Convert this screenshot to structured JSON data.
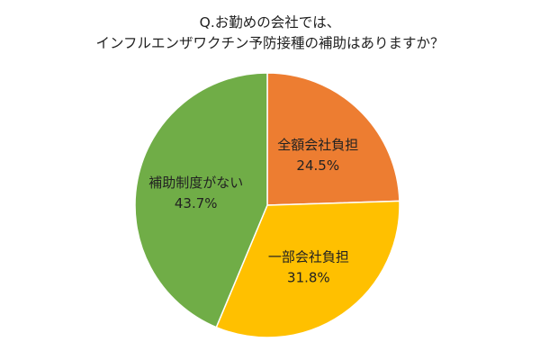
{
  "chart_data": {
    "type": "pie",
    "title_lines": [
      "Q.お勤めの会社では、",
      "インフルエンザワクチン予防接種の補助はありますか？"
    ],
    "slices": [
      {
        "label": "全額会社負担",
        "value": 24.5,
        "value_label": "24.5%",
        "color": "#ED7D31"
      },
      {
        "label": "一部会社負担",
        "value": 31.8,
        "value_label": "31.8%",
        "color": "#FFC000"
      },
      {
        "label": "補助制度がない",
        "value": 43.7,
        "value_label": "43.7%",
        "color": "#70AD47"
      }
    ],
    "start_angle_deg": 0,
    "direction": "clockwise",
    "legend": "none"
  }
}
